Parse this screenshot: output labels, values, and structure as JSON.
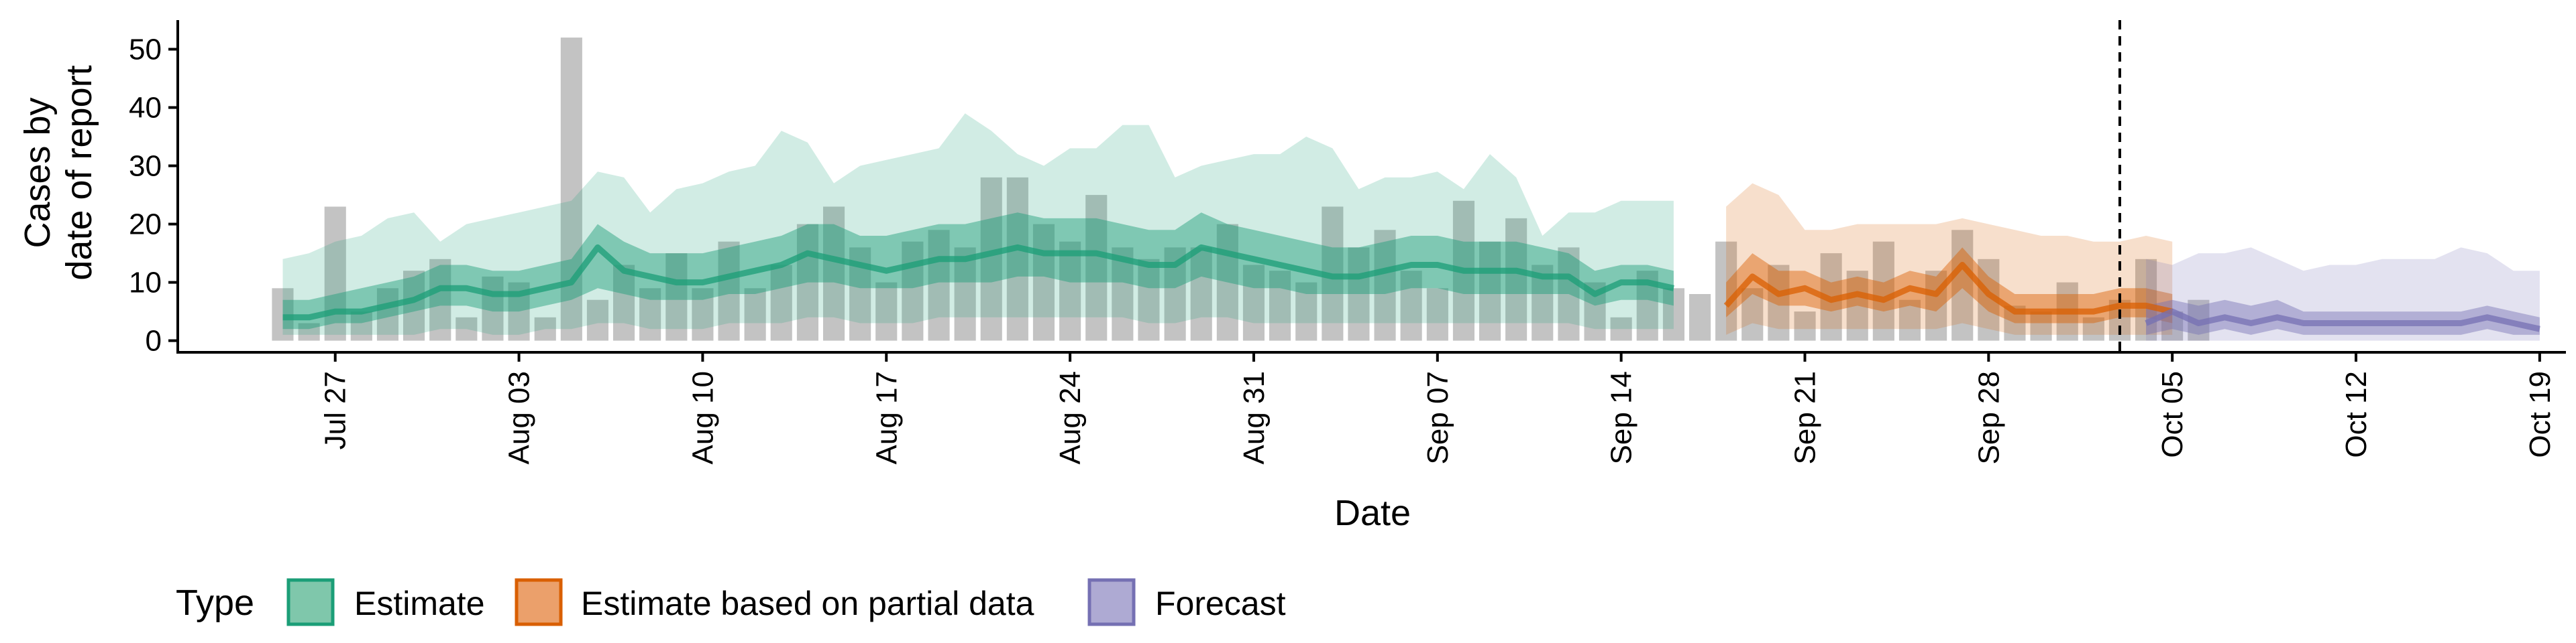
{
  "chart_data": {
    "type": "bar",
    "xlabel": "Date",
    "ylabel_lines": [
      "Cases by",
      "date of report"
    ],
    "x_range": [
      "2020-07-21",
      "2020-10-20"
    ],
    "ylim": [
      -2,
      55
    ],
    "y_ticks": [
      0,
      10,
      20,
      30,
      40,
      50
    ],
    "x_ticks": [
      {
        "date": "2020-07-27",
        "label": "Jul 27"
      },
      {
        "date": "2020-08-03",
        "label": "Aug 03"
      },
      {
        "date": "2020-08-10",
        "label": "Aug 10"
      },
      {
        "date": "2020-08-17",
        "label": "Aug 17"
      },
      {
        "date": "2020-08-24",
        "label": "Aug 24"
      },
      {
        "date": "2020-08-31",
        "label": "Aug 31"
      },
      {
        "date": "2020-09-07",
        "label": "Sep 07"
      },
      {
        "date": "2020-09-14",
        "label": "Sep 14"
      },
      {
        "date": "2020-09-21",
        "label": "Sep 21"
      },
      {
        "date": "2020-09-28",
        "label": "Sep 28"
      },
      {
        "date": "2020-10-05",
        "label": "Oct 05"
      },
      {
        "date": "2020-10-12",
        "label": "Oct 12"
      },
      {
        "date": "2020-10-19",
        "label": "Oct 19"
      }
    ],
    "forecast_start": "2020-10-03",
    "grid": false,
    "legend_position": "bottom",
    "legend": {
      "title": "Type",
      "entries": [
        {
          "label": "Estimate",
          "fill": "#7fc7ab",
          "stroke": "#1b9e77"
        },
        {
          "label": "Estimate based on partial data",
          "fill": "#eba06b",
          "stroke": "#d95f02"
        },
        {
          "label": "Forecast",
          "fill": "#aeaad3",
          "stroke": "#7570b3"
        }
      ]
    },
    "colors": {
      "bars": "#bdbdbd",
      "estimate": "#1b9e77",
      "partial": "#d95f02",
      "forecast": "#7570b3",
      "vline": "#000000"
    },
    "bars": {
      "start": "2020-07-25",
      "values": [
        9,
        3,
        23,
        5,
        9,
        12,
        14,
        4,
        11,
        10,
        4,
        52,
        7,
        13,
        9,
        15,
        9,
        17,
        9,
        13,
        20,
        23,
        16,
        10,
        17,
        19,
        16,
        28,
        28,
        20,
        17,
        25,
        16,
        14,
        16,
        16,
        20,
        13,
        12,
        10,
        23,
        16,
        19,
        12,
        9,
        24,
        17,
        21,
        13,
        16,
        10,
        4,
        12,
        9,
        8,
        17,
        9,
        13,
        5,
        15,
        12,
        17,
        7,
        12,
        19,
        14,
        6,
        5,
        10,
        4,
        7,
        14,
        5,
        7
      ]
    },
    "series": [
      {
        "name": "Estimate",
        "start": "2020-07-25",
        "median": [
          4,
          4,
          5,
          5,
          6,
          7,
          9,
          9,
          8,
          8,
          9,
          10,
          16,
          12,
          11,
          10,
          10,
          11,
          12,
          13,
          15,
          14,
          13,
          12,
          13,
          14,
          14,
          15,
          16,
          15,
          15,
          15,
          14,
          13,
          13,
          16,
          15,
          14,
          13,
          12,
          11,
          11,
          12,
          13,
          13,
          12,
          12,
          12,
          11,
          11,
          8,
          10,
          10,
          9
        ],
        "lower50": [
          2,
          2,
          3,
          3,
          4,
          5,
          6,
          6,
          5,
          5,
          6,
          7,
          9,
          8,
          7,
          7,
          7,
          8,
          8,
          9,
          10,
          10,
          9,
          9,
          9,
          10,
          10,
          10,
          11,
          11,
          10,
          10,
          10,
          9,
          9,
          11,
          10,
          9,
          9,
          8,
          8,
          8,
          8,
          9,
          9,
          8,
          8,
          8,
          8,
          8,
          6,
          7,
          7,
          6
        ],
        "upper50": [
          7,
          7,
          8,
          9,
          10,
          11,
          13,
          13,
          12,
          12,
          13,
          14,
          20,
          17,
          15,
          15,
          15,
          16,
          17,
          18,
          20,
          20,
          18,
          18,
          19,
          20,
          20,
          21,
          22,
          21,
          21,
          21,
          20,
          19,
          19,
          22,
          20,
          19,
          18,
          17,
          16,
          16,
          17,
          18,
          18,
          17,
          17,
          17,
          16,
          15,
          12,
          13,
          13,
          12
        ],
        "lower90": [
          1,
          1,
          1,
          1,
          1,
          1,
          2,
          2,
          1,
          1,
          2,
          2,
          3,
          3,
          2,
          2,
          2,
          3,
          3,
          3,
          4,
          4,
          3,
          3,
          3,
          4,
          4,
          4,
          4,
          4,
          4,
          4,
          4,
          3,
          3,
          4,
          4,
          3,
          3,
          3,
          3,
          3,
          3,
          3,
          3,
          3,
          3,
          3,
          3,
          3,
          2,
          2,
          2,
          2
        ],
        "upper90": [
          14,
          15,
          17,
          18,
          21,
          22,
          17,
          20,
          21,
          22,
          23,
          24,
          29,
          28,
          22,
          26,
          27,
          29,
          30,
          36,
          34,
          27,
          30,
          31,
          32,
          33,
          39,
          36,
          32,
          30,
          33,
          33,
          37,
          37,
          28,
          30,
          31,
          32,
          32,
          35,
          33,
          26,
          28,
          28,
          29,
          26,
          32,
          28,
          18,
          22,
          22,
          24,
          24,
          24
        ]
      },
      {
        "name": "Estimate based on partial data",
        "start": "2020-09-18",
        "median": [
          6,
          11,
          8,
          9,
          7,
          8,
          7,
          9,
          8,
          13,
          8,
          5,
          5,
          5,
          5,
          6,
          6,
          5
        ],
        "lower50": [
          4,
          8,
          6,
          6,
          5,
          6,
          5,
          6,
          5,
          9,
          5,
          3,
          3,
          3,
          3,
          4,
          4,
          3
        ],
        "upper50": [
          10,
          15,
          12,
          12,
          10,
          11,
          10,
          12,
          11,
          16,
          11,
          8,
          8,
          8,
          8,
          9,
          9,
          8
        ],
        "lower90": [
          1,
          3,
          2,
          2,
          2,
          2,
          2,
          2,
          2,
          3,
          2,
          1,
          1,
          1,
          1,
          1,
          1,
          1
        ],
        "upper90": [
          23,
          27,
          25,
          19,
          19,
          20,
          20,
          20,
          20,
          21,
          20,
          19,
          18,
          18,
          17,
          17,
          18,
          17
        ]
      },
      {
        "name": "Forecast",
        "start": "2020-10-04",
        "median": [
          3,
          5,
          3,
          4,
          3,
          4,
          3,
          3,
          3,
          3,
          3,
          3,
          3,
          4,
          3,
          2
        ],
        "lower50": [
          1,
          2,
          1,
          2,
          1,
          2,
          1,
          1,
          1,
          1,
          1,
          1,
          1,
          2,
          1,
          1
        ],
        "upper50": [
          6,
          7,
          6,
          7,
          6,
          7,
          5,
          5,
          5,
          5,
          5,
          5,
          5,
          6,
          5,
          4
        ],
        "lower90": [
          0,
          0,
          0,
          0,
          0,
          0,
          0,
          0,
          0,
          0,
          0,
          0,
          0,
          0,
          0,
          0
        ],
        "upper90": [
          14,
          13,
          15,
          15,
          16,
          14,
          12,
          13,
          13,
          14,
          14,
          14,
          16,
          15,
          12,
          12
        ]
      }
    ]
  }
}
